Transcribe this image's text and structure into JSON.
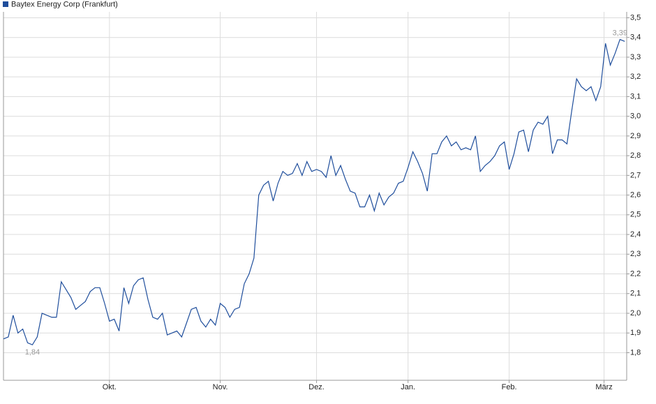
{
  "chart_data": {
    "type": "line",
    "legend": "top-left",
    "grid": true,
    "ylim": [
      1.66,
      3.53
    ],
    "yticks": [
      {
        "value": 1.8,
        "label": "1,8"
      },
      {
        "value": 1.9,
        "label": "1,9"
      },
      {
        "value": 2.0,
        "label": "2,0"
      },
      {
        "value": 2.1,
        "label": "2,1"
      },
      {
        "value": 2.2,
        "label": "2,2"
      },
      {
        "value": 2.3,
        "label": "2,3"
      },
      {
        "value": 2.4,
        "label": "2,4"
      },
      {
        "value": 2.5,
        "label": "2,5"
      },
      {
        "value": 2.6,
        "label": "2,6"
      },
      {
        "value": 2.7,
        "label": "2,7"
      },
      {
        "value": 2.8,
        "label": "2,8"
      },
      {
        "value": 2.9,
        "label": "2,9"
      },
      {
        "value": 3.0,
        "label": "3,0"
      },
      {
        "value": 3.1,
        "label": "3,1"
      },
      {
        "value": 3.2,
        "label": "3,2"
      },
      {
        "value": 3.3,
        "label": "3,3"
      },
      {
        "value": 3.4,
        "label": "3,4"
      },
      {
        "value": 3.5,
        "label": "3,5"
      }
    ],
    "xlim": [
      0,
      129.4
    ],
    "xticks": [
      {
        "value": 22,
        "label": "Okt."
      },
      {
        "value": 45,
        "label": "Nov."
      },
      {
        "value": 65,
        "label": "Dez."
      },
      {
        "value": 84,
        "label": "Jan."
      },
      {
        "value": 105,
        "label": "Feb."
      },
      {
        "value": 124.7,
        "label": "März"
      }
    ],
    "series": [
      {
        "name": "Baytex Energy Corp (Frankfurt)",
        "color": "#1f4e9c",
        "values": [
          1.87,
          1.88,
          1.99,
          1.9,
          1.92,
          1.85,
          1.84,
          1.88,
          2.0,
          1.99,
          1.98,
          1.98,
          2.16,
          2.12,
          2.08,
          2.02,
          2.04,
          2.06,
          2.11,
          2.13,
          2.13,
          2.05,
          1.96,
          1.97,
          1.91,
          2.13,
          2.05,
          2.14,
          2.17,
          2.18,
          2.07,
          1.98,
          1.97,
          2.0,
          1.89,
          1.9,
          1.91,
          1.88,
          1.95,
          2.02,
          2.03,
          1.96,
          1.93,
          1.97,
          1.94,
          2.05,
          2.03,
          1.98,
          2.02,
          2.03,
          2.15,
          2.2,
          2.28,
          2.6,
          2.65,
          2.67,
          2.57,
          2.66,
          2.72,
          2.7,
          2.71,
          2.76,
          2.7,
          2.77,
          2.72,
          2.73,
          2.72,
          2.69,
          2.8,
          2.7,
          2.75,
          2.68,
          2.62,
          2.61,
          2.54,
          2.54,
          2.6,
          2.52,
          2.61,
          2.55,
          2.59,
          2.61,
          2.66,
          2.67,
          2.74,
          2.82,
          2.77,
          2.71,
          2.62,
          2.81,
          2.81,
          2.87,
          2.9,
          2.85,
          2.87,
          2.83,
          2.84,
          2.83,
          2.9,
          2.72,
          2.75,
          2.77,
          2.8,
          2.85,
          2.87,
          2.73,
          2.81,
          2.92,
          2.93,
          2.82,
          2.93,
          2.97,
          2.96,
          3.0,
          2.81,
          2.88,
          2.88,
          2.86,
          3.03,
          3.19,
          3.15,
          3.13,
          3.15,
          3.08,
          3.15,
          3.37,
          3.26,
          3.32,
          3.39,
          3.38
        ],
        "value_labels": [
          null,
          null,
          null,
          null,
          null,
          null,
          "1,84",
          null,
          null,
          null,
          null,
          null,
          null,
          null,
          null,
          null,
          null,
          null,
          null,
          null,
          null,
          null,
          null,
          null,
          null,
          null,
          null,
          null,
          null,
          null,
          null,
          null,
          null,
          null,
          null,
          null,
          null,
          null,
          null,
          null,
          null,
          null,
          null,
          null,
          null,
          null,
          null,
          null,
          null,
          null,
          null,
          null,
          null,
          null,
          null,
          null,
          null,
          null,
          null,
          null,
          null,
          null,
          null,
          null,
          null,
          null,
          null,
          null,
          null,
          null,
          null,
          null,
          null,
          null,
          null,
          null,
          null,
          null,
          null,
          null,
          null,
          null,
          null,
          null,
          null,
          null,
          null,
          null,
          null,
          null,
          null,
          null,
          null,
          null,
          null,
          null,
          null,
          null,
          null,
          null,
          null,
          null,
          null,
          null,
          null,
          null,
          null,
          null,
          null,
          null,
          null,
          null,
          null,
          null,
          null,
          null,
          null,
          null,
          null,
          null,
          null,
          null,
          null,
          null,
          null,
          null,
          null,
          null,
          "3,39",
          null
        ]
      }
    ]
  }
}
